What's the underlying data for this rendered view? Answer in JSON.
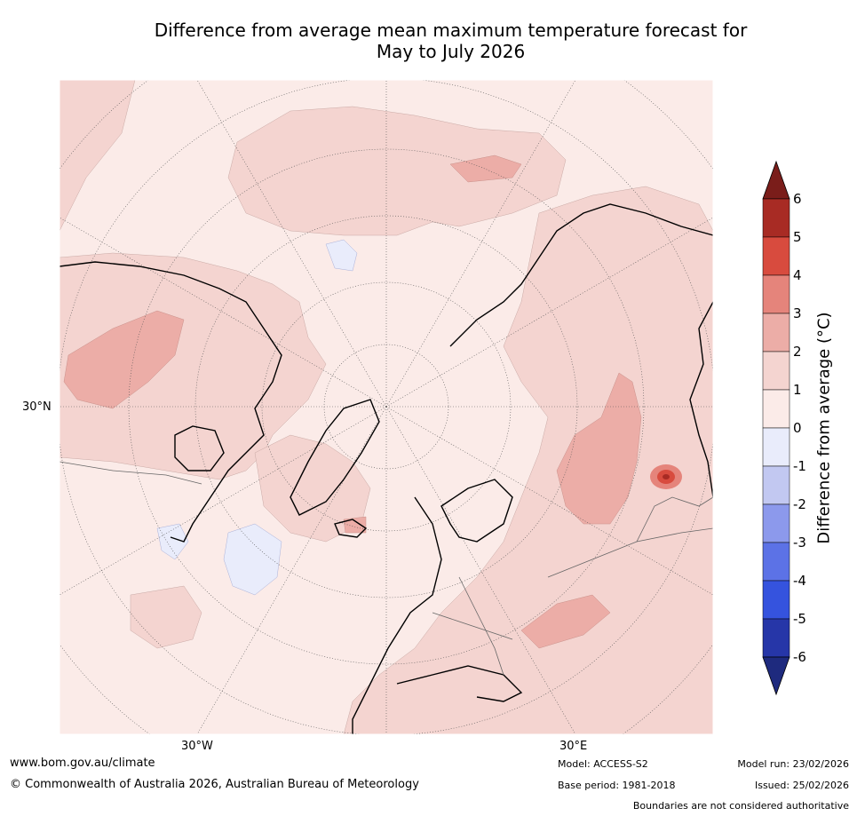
{
  "title_line1": "Difference from average mean maximum temperature forecast for",
  "title_line2": "May to July 2026",
  "map": {
    "lat_label": "30°N",
    "lon_labels": [
      "30°W",
      "30°E"
    ],
    "projection": "north-polar-stereographic"
  },
  "colorbar": {
    "label": "Difference from average (°C)",
    "ticks": [
      "6",
      "5",
      "4",
      "3",
      "2",
      "1",
      "0",
      "-1",
      "-2",
      "-3",
      "-4",
      "-5",
      "-6"
    ],
    "colors": {
      "over": "#7a1d1a",
      "c6_5": "#a82b24",
      "c5_4": "#d84b3e",
      "c4_3": "#e5847b",
      "c3_2": "#ecada7",
      "c2_1": "#f4d4d0",
      "c1_0": "#fbebe8",
      "c0_m1": "#e9ecfb",
      "cm1_m2": "#c2c8f1",
      "cm2_m3": "#8c99ec",
      "cm3_m4": "#5c72e6",
      "cm4_m5": "#3553de",
      "cm5_m6": "#2636a8",
      "under": "#1e2a7e"
    }
  },
  "footer": {
    "website": "www.bom.gov.au/climate",
    "copyright": "© Commonwealth of Australia 2026, Australian Bureau of Meteorology",
    "model": "Model: ACCESS-S2",
    "base_period": "Base period: 1981-2018",
    "model_run": "Model run: 23/02/2026",
    "issued": "Issued: 25/02/2026",
    "disclaimer": "Boundaries are not considered authoritative"
  }
}
